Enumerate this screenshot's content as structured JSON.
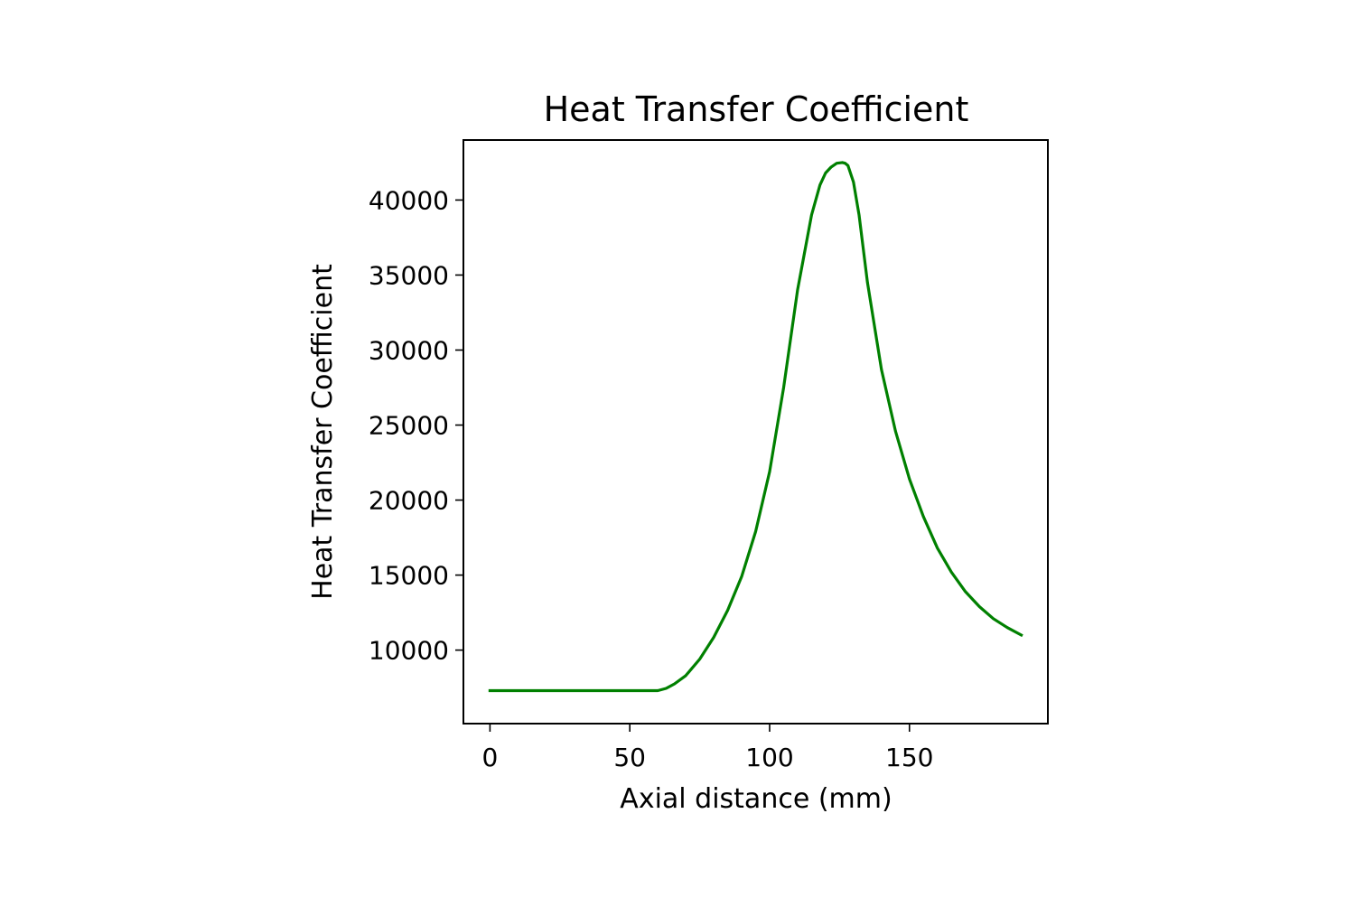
{
  "chart_data": {
    "type": "line",
    "title": "Heat Transfer Coefficient",
    "xlabel": "Axial distance (mm)",
    "ylabel": "Heat Transfer Coefficient",
    "xlim": [
      -9.5,
      199.5
    ],
    "ylim": [
      5100,
      44000
    ],
    "xticks": [
      0,
      50,
      100,
      150
    ],
    "yticks": [
      10000,
      15000,
      20000,
      25000,
      30000,
      35000,
      40000
    ],
    "grid": false,
    "legend": "none",
    "series": [
      {
        "color": "#008000",
        "x": [
          0,
          10,
          20,
          30,
          40,
          50,
          60,
          63,
          66,
          70,
          75,
          80,
          85,
          90,
          95,
          100,
          105,
          110,
          115,
          118,
          120,
          122,
          124,
          126,
          127,
          128,
          130,
          132,
          135,
          140,
          145,
          150,
          155,
          160,
          165,
          170,
          175,
          180,
          185,
          190
        ],
        "y": [
          7300,
          7300,
          7300,
          7300,
          7300,
          7300,
          7300,
          7450,
          7750,
          8300,
          9400,
          10850,
          12650,
          14900,
          17900,
          21900,
          27500,
          34000,
          39000,
          41000,
          41800,
          42200,
          42450,
          42500,
          42450,
          42300,
          41200,
          39000,
          34500,
          28700,
          24600,
          21400,
          18900,
          16800,
          15200,
          13900,
          12900,
          12100,
          11500,
          11000
        ]
      }
    ]
  }
}
